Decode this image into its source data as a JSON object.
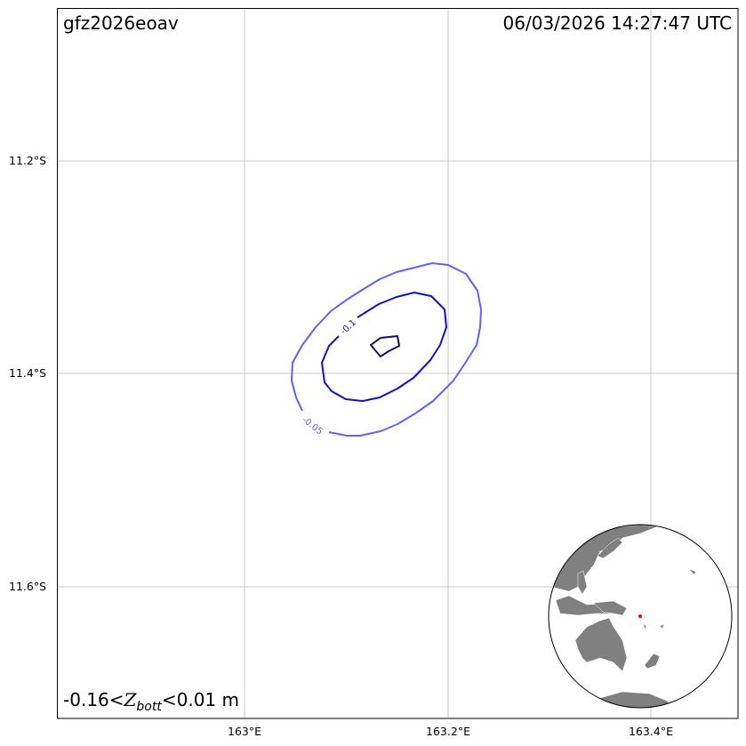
{
  "header": {
    "event_id": "gfz2026eoav",
    "timestamp": "06/03/2026 14:27:47 UTC"
  },
  "range_label": {
    "prefix": "-0.16<",
    "var": "Z",
    "sub": "bott",
    "suffix": "<0.01 m"
  },
  "axes": {
    "x_ticks": [
      "163°E",
      "163.2°E",
      "163.4°E"
    ],
    "y_ticks": [
      "11.2°S",
      "11.4°S",
      "11.6°S"
    ],
    "grid": true
  },
  "contours": [
    {
      "level": -0.05,
      "label": "-0.05",
      "color": "#6060ff"
    },
    {
      "level": -0.1,
      "label": "-0.1",
      "color": "#1010cc"
    },
    {
      "level": -0.15,
      "label": "",
      "color": "#101060"
    }
  ],
  "inset_globe": {
    "land_color": "#808080",
    "epicenter_color": "#ff0000"
  }
}
